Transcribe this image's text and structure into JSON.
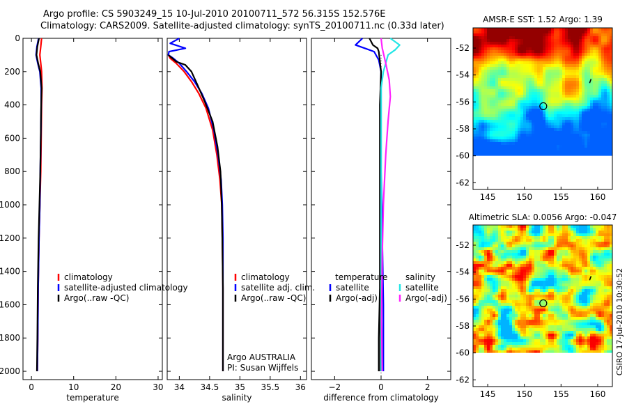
{
  "header": {
    "line1": "Argo profile: CS 5903249_15 10-Jul-2010 20100711_572 56.315S 152.576E",
    "line2": "Climatology: CARS2009. Satellite-adjusted climatology: synTS_20100711.nc (0.33d later)"
  },
  "side_label": "CSIRO 17-Jul-2010 10:30:52",
  "colors": {
    "red": "#ff0000",
    "blue": "#0000ff",
    "black": "#000000",
    "cyan": "#22e6e6",
    "magenta": "#ff22ff"
  },
  "chart_data": [
    {
      "type": "line",
      "id": "temperature",
      "xlabel": "temperature",
      "xlim": [
        -2,
        31
      ],
      "ylim": [
        2050,
        0
      ],
      "xticks": [
        0,
        10,
        20,
        30
      ],
      "xtick_labels": [
        "0",
        "10",
        "20",
        "30"
      ],
      "yticks": [
        0,
        200,
        400,
        600,
        800,
        1000,
        1200,
        1400,
        1600,
        1800,
        2000
      ],
      "ytick_labels": [
        "0",
        "200",
        "400",
        "600",
        "800",
        "1000",
        "1200",
        "1400",
        "1600",
        "1800",
        "2000"
      ],
      "legend": [
        "climatology",
        "satellite-adjusted climatology",
        "Argo(..raw -QC)"
      ],
      "series": [
        {
          "name": "climatology",
          "color": "red",
          "x": [
            2.4,
            2.2,
            2.0,
            2.2,
            2.4,
            2.5,
            2.4,
            2.3,
            2.2,
            2.0,
            1.8,
            1.6,
            1.5,
            1.4
          ],
          "y": [
            0,
            50,
            100,
            150,
            200,
            300,
            400,
            600,
            800,
            1000,
            1200,
            1500,
            1800,
            2000
          ]
        },
        {
          "name": "satellite-adjusted climatology",
          "color": "blue",
          "x": [
            1.7,
            1.3,
            1.1,
            1.5,
            2.0,
            2.3,
            2.3,
            2.2,
            2.1,
            2.0,
            1.8,
            1.6,
            1.5,
            1.4
          ],
          "y": [
            0,
            50,
            100,
            150,
            200,
            300,
            400,
            600,
            800,
            1000,
            1200,
            1500,
            1800,
            2000
          ]
        },
        {
          "name": "Argo(..raw -QC)",
          "color": "black",
          "x": [
            1.8,
            1.4,
            1.2,
            1.6,
            2.1,
            2.4,
            2.3,
            2.2,
            2.1,
            1.9,
            1.7,
            1.5,
            1.4,
            1.3
          ],
          "y": [
            0,
            50,
            100,
            150,
            200,
            300,
            400,
            600,
            800,
            1000,
            1200,
            1500,
            1800,
            2000
          ]
        }
      ]
    },
    {
      "type": "line",
      "id": "salinity",
      "xlabel": "salinity",
      "xlim": [
        33.8,
        36.1
      ],
      "ylim": [
        2050,
        0
      ],
      "xticks": [
        34,
        34.5,
        35,
        35.5,
        36
      ],
      "xtick_labels": [
        "34",
        "34.5",
        "35",
        "35.5",
        "36"
      ],
      "legend": [
        "climatology",
        "satellite adj. clim.",
        "Argo(..raw -QC)"
      ],
      "annotation": [
        "Argo AUSTRALIA",
        "PI: Susan Wijffels"
      ],
      "series": [
        {
          "name": "climatology",
          "color": "red",
          "x": [
            33.82,
            33.85,
            33.95,
            34.08,
            34.2,
            34.32,
            34.44,
            34.55,
            34.62,
            34.67,
            34.7,
            34.71,
            34.72,
            34.72,
            34.72
          ],
          "y": [
            100,
            120,
            150,
            200,
            260,
            330,
            420,
            550,
            700,
            850,
            1000,
            1200,
            1500,
            1800,
            2000
          ]
        },
        {
          "name": "satellite adj. clim.",
          "color": "blue",
          "x": [
            34.0,
            33.85,
            34.1,
            33.83,
            33.82,
            33.9,
            34.0,
            34.12,
            34.25,
            34.37,
            34.48,
            34.57,
            34.64,
            34.69,
            34.71,
            34.72,
            34.72,
            34.72,
            34.72
          ],
          "y": [
            0,
            30,
            60,
            80,
            100,
            120,
            150,
            200,
            260,
            330,
            420,
            550,
            700,
            850,
            1000,
            1200,
            1500,
            1800,
            2000
          ]
        },
        {
          "name": "Argo(..raw -QC)",
          "color": "black",
          "x": [
            33.82,
            33.95,
            34.1,
            34.2,
            34.3,
            34.42,
            34.55,
            34.63,
            34.68,
            34.7,
            34.71,
            34.72,
            34.72
          ],
          "y": [
            100,
            140,
            160,
            200,
            280,
            380,
            500,
            650,
            800,
            1000,
            1200,
            1500,
            2000
          ]
        }
      ]
    },
    {
      "type": "line",
      "id": "difference",
      "xlabel": "difference from climatology",
      "xlim": [
        -3,
        3
      ],
      "ylim": [
        2050,
        0
      ],
      "xticks": [
        -2,
        0,
        2
      ],
      "xtick_labels": [
        "−2",
        "0",
        "2"
      ],
      "legend_left": [
        "temperature",
        "satellite",
        "Argo(-adj)"
      ],
      "legend_right": [
        "salinity",
        "satellite",
        "Argo(-adj)"
      ],
      "series": [
        {
          "name": "temperature satellite",
          "color": "blue",
          "x": [
            -0.8,
            -1.1,
            -0.7,
            -0.3,
            -0.1,
            0,
            0,
            0,
            0.05,
            0.1,
            0.1
          ],
          "y": [
            0,
            40,
            60,
            80,
            130,
            200,
            400,
            800,
            1200,
            1600,
            2000
          ]
        },
        {
          "name": "temperature Argo(-adj)",
          "color": "black",
          "x": [
            -0.5,
            -0.35,
            -0.15,
            -0.1,
            0,
            -0.05,
            -0.05,
            -0.05,
            -0.05,
            -0.1,
            -0.1
          ],
          "y": [
            0,
            40,
            60,
            80,
            200,
            400,
            800,
            1200,
            1500,
            1800,
            2000
          ]
        },
        {
          "name": "salinity satellite",
          "color": "cyan",
          "x": [
            0.4,
            0.8,
            0.6,
            0.3,
            0.1,
            0.0,
            0.0,
            0.0,
            0.0,
            0.0,
            0.0
          ],
          "y": [
            0,
            40,
            70,
            100,
            200,
            300,
            500,
            800,
            1200,
            1600,
            2000
          ]
        },
        {
          "name": "salinity Argo(-adj)",
          "color": "magenta",
          "x": [
            0.0,
            0.05,
            0.2,
            0.35,
            0.4,
            0.3,
            0.2,
            0.1,
            0.05,
            0.02,
            0.05
          ],
          "y": [
            0,
            60,
            150,
            250,
            350,
            500,
            700,
            1000,
            1300,
            1700,
            2000
          ]
        }
      ]
    },
    {
      "type": "heatmap",
      "id": "sst",
      "title": "AMSR-E SST: 1.52 Argo: 1.39",
      "xlim": [
        143,
        162
      ],
      "ylim": [
        -62.5,
        -50.5
      ],
      "xticks": [
        145,
        150,
        155,
        160
      ],
      "xtick_labels": [
        "145",
        "150",
        "155",
        "160"
      ],
      "yticks": [
        -52,
        -54,
        -56,
        -58,
        -60,
        -62
      ],
      "ytick_labels": [
        "-52",
        "-54",
        "-56",
        "-58",
        "-60",
        "-62"
      ],
      "data_ylim": [
        -60,
        -50.5
      ],
      "marker": {
        "lon": 152.576,
        "lat": -56.315
      }
    },
    {
      "type": "heatmap",
      "id": "sla",
      "title": "Altimetric SLA: 0.0056 Argo: -0.047",
      "xlim": [
        143,
        162
      ],
      "ylim": [
        -62.5,
        -50.5
      ],
      "xticks": [
        145,
        150,
        155,
        160
      ],
      "xtick_labels": [
        "145",
        "150",
        "155",
        "160"
      ],
      "yticks": [
        -52,
        -54,
        -56,
        -58,
        -60,
        -62
      ],
      "ytick_labels": [
        "-52",
        "-54",
        "-56",
        "-58",
        "-60",
        "-62"
      ],
      "data_ylim": [
        -60,
        -50.5
      ],
      "marker": {
        "lon": 152.576,
        "lat": -56.315
      }
    }
  ]
}
